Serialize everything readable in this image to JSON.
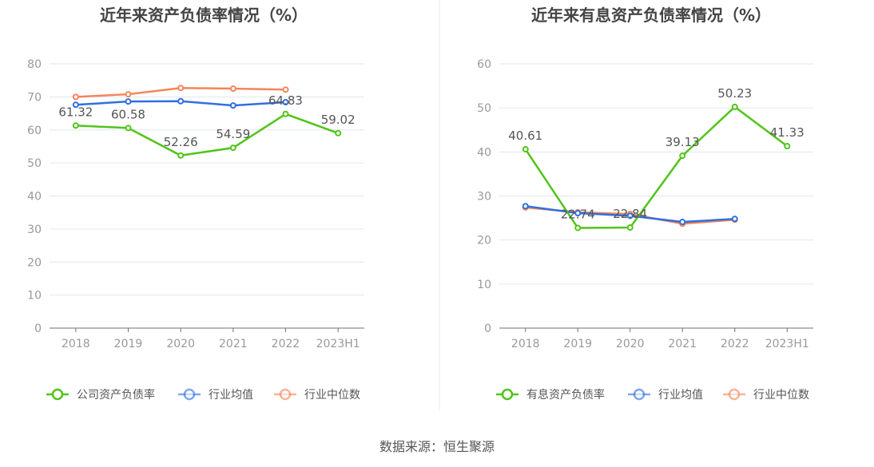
{
  "source": "数据来源：恒生聚源",
  "colors": {
    "green": "#52c41a",
    "blue": "#2f6fe0",
    "orange": "#f5845a"
  },
  "chart_data": [
    {
      "type": "line",
      "title": "近年来资产负债率情况（%）",
      "categories": [
        "2018",
        "2019",
        "2020",
        "2021",
        "2022",
        "2023H1"
      ],
      "ylim": [
        0,
        80
      ],
      "yticks": [
        0,
        10,
        20,
        30,
        40,
        50,
        60,
        70,
        80
      ],
      "legend": "bottom",
      "series": [
        {
          "name": "公司资产负债率",
          "color": "#52c41a",
          "values": [
            61.32,
            60.58,
            52.26,
            54.59,
            64.83,
            59.02
          ],
          "labels": [
            "61.32",
            "60.58",
            "52.26",
            "54.59",
            "64.83",
            "59.02"
          ]
        },
        {
          "name": "行业均值",
          "color": "#2f6fe0",
          "values": [
            67.6,
            68.6,
            68.7,
            67.4,
            68.4,
            null
          ]
        },
        {
          "name": "行业中位数",
          "color": "#f5845a",
          "values": [
            70.0,
            70.8,
            72.7,
            72.5,
            72.2,
            null
          ]
        }
      ]
    },
    {
      "type": "line",
      "title": "近年来有息资产负债率情况（%）",
      "categories": [
        "2018",
        "2019",
        "2020",
        "2021",
        "2022",
        "2023H1"
      ],
      "ylim": [
        0,
        60
      ],
      "yticks": [
        0,
        10,
        20,
        30,
        40,
        50,
        60
      ],
      "legend": "bottom",
      "series": [
        {
          "name": "有息资产负债率",
          "color": "#52c41a",
          "values": [
            40.61,
            22.74,
            22.84,
            39.13,
            50.23,
            41.33
          ],
          "labels": [
            "40.61",
            "22.74",
            "22.84",
            "39.13",
            "50.23",
            "41.33"
          ]
        },
        {
          "name": "行业均值",
          "color": "#2f6fe0",
          "values": [
            27.7,
            26.1,
            25.5,
            24.1,
            24.8,
            null
          ]
        },
        {
          "name": "行业中位数",
          "color": "#f5845a",
          "values": [
            27.4,
            26.3,
            25.9,
            23.7,
            24.6,
            null
          ]
        }
      ]
    }
  ]
}
